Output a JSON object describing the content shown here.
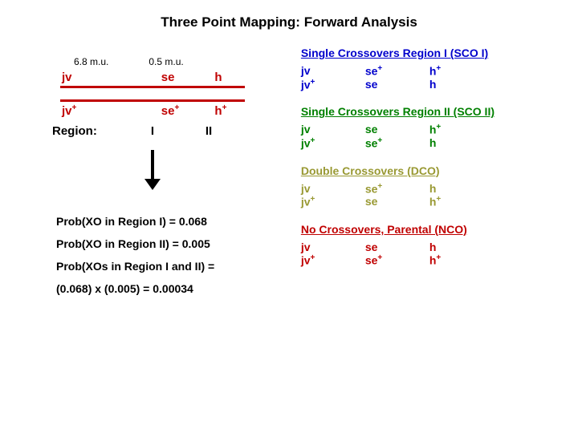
{
  "title": "Three Point Mapping: Forward Analysis",
  "map": {
    "dist1": "6.8 m.u.",
    "dist2": "0.5 m.u.",
    "top": {
      "a1": "jv",
      "a2": "se",
      "a3": "h"
    },
    "bot": {
      "a1": "jv",
      "a1sup": "+",
      "a2": "se",
      "a2sup": "+",
      "a3": "h",
      "a3sup": "+"
    }
  },
  "region_label": "Region:",
  "region_I": "I",
  "region_II": "II",
  "probs": {
    "p1": "Prob(XO in Region I) = 0.068",
    "p2": "Prob(XO in Region II) = 0.005",
    "p3": "Prob(XOs in Region I and II) =",
    "p4": "(0.068) x (0.005) = 0.00034"
  },
  "sco1": {
    "title": "Single Crossovers Region I (SCO I)",
    "r1": {
      "a1": "jv",
      "a2": "se",
      "a2sup": "+",
      "a3": "h",
      "a3sup": "+"
    },
    "r2": {
      "a1": "jv",
      "a1sup": "+",
      "a2": "se",
      "a3": "h"
    }
  },
  "sco2": {
    "title": "Single Crossovers Region II (SCO II)",
    "r1": {
      "a1": "jv",
      "a2": "se",
      "a3": "h",
      "a3sup": "+"
    },
    "r2": {
      "a1": "jv",
      "a1sup": "+",
      "a2": "se",
      "a2sup": "+",
      "a3": "h"
    }
  },
  "dco": {
    "title": "Double Crossovers (DCO)",
    "r1": {
      "a1": "jv",
      "a2": "se",
      "a2sup": "+",
      "a3": "h"
    },
    "r2": {
      "a1": "jv",
      "a1sup": "+",
      "a2": "se",
      "a3": "h",
      "a3sup": "+"
    }
  },
  "nco": {
    "title": "No Crossovers, Parental (NCO)",
    "r1": {
      "a1": "jv",
      "a2": "se",
      "a3": "h"
    },
    "r2": {
      "a1": "jv",
      "a1sup": "+",
      "a2": "se",
      "a2sup": "+",
      "a3": "h",
      "a3sup": "+"
    }
  }
}
